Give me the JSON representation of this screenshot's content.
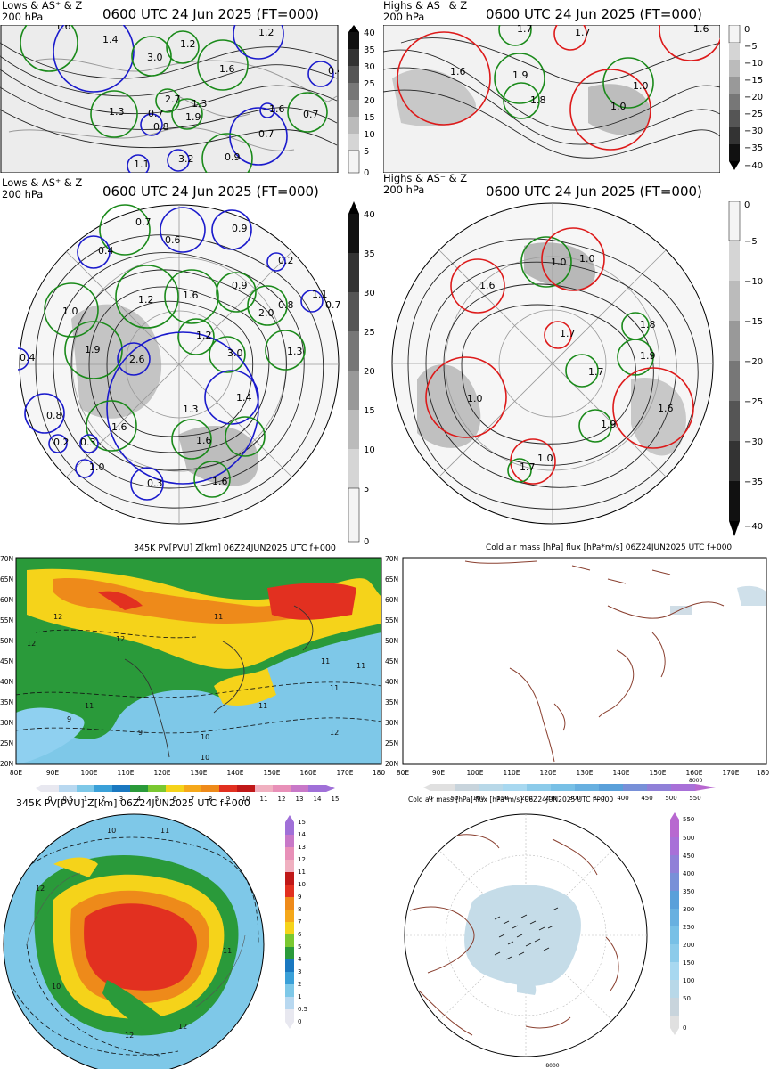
{
  "panel_tl": {
    "header_left_line1": "Lows & AS⁺ & Z",
    "header_left_line2": "200 hPa",
    "header_title": "0600 UTC 24 Jun 2025 (FT=000)",
    "colorbar_ticks": [
      "40",
      "35",
      "30",
      "25",
      "20",
      "15",
      "10",
      "5",
      "0"
    ],
    "labels": [
      "1.6",
      "1.4",
      "1.2",
      "1.2",
      "3.0",
      "1.6",
      "0.4",
      "2.7",
      "1.3",
      "0.7",
      "1.3",
      "1.9",
      "1.6",
      "0.7",
      "0.8",
      "0.7",
      "1.1",
      "3.2",
      "0.9"
    ]
  },
  "panel_tr": {
    "header_left_line1": "Highs & AS⁻ & Z",
    "header_left_line2": "200 hPa",
    "header_title": "0600 UTC 24 Jun 2025 (FT=000)",
    "colorbar_ticks": [
      "0",
      "−5",
      "−10",
      "−15",
      "−20",
      "−25",
      "−30",
      "−35",
      "−40"
    ],
    "labels": [
      "1.7",
      "1.7",
      "1.6",
      "1.6",
      "1.9",
      "1.0",
      "1.8",
      "1.0"
    ]
  },
  "panel_ml": {
    "header_left_line1": "Lows & AS⁺ & Z",
    "header_left_line2": "200 hPa",
    "header_title": "0600 UTC 24 Jun 2025 (FT=000)",
    "colorbar_ticks": [
      "40",
      "35",
      "30",
      "25",
      "20",
      "15",
      "10",
      "5",
      "0"
    ],
    "labels": [
      "0.7",
      "0.9",
      "0.4",
      "0.6",
      "0.2",
      "1.0",
      "1.2",
      "1.6",
      "0.9",
      "0.8",
      "1.9",
      "1.2",
      "3.0",
      "1.3",
      "0.4",
      "2.6",
      "1.3",
      "1.4",
      "0.8",
      "1.6",
      "1.6",
      "0.3",
      "0.2",
      "1.0",
      "0.3",
      "1.6",
      "1.1",
      "0.7",
      "2.0"
    ]
  },
  "panel_mr": {
    "header_left_line1": "Highs & AS⁻ & Z",
    "header_left_line2": "200 hPa",
    "header_title": "0600 UTC 24 Jun 2025 (FT=000)",
    "colorbar_ticks": [
      "0",
      "−5",
      "−10",
      "−15",
      "−20",
      "−25",
      "−30",
      "−35",
      "−40"
    ],
    "labels": [
      "1.0",
      "1.0",
      "1.6",
      "1.7",
      "1.8",
      "1.9",
      "1.7",
      "1.0",
      "1.6",
      "1.9",
      "1.0",
      "1.7"
    ]
  },
  "panel_pv_asia": {
    "title": "345K PV[PVU] Z[km] 06Z24JUN2025 UTC f+000",
    "lat_labels": [
      "70N",
      "65N",
      "60N",
      "55N",
      "50N",
      "45N",
      "40N",
      "35N",
      "30N",
      "25N",
      "20N"
    ],
    "lon_labels": [
      "80E",
      "90E",
      "100E",
      "110E",
      "120E",
      "130E",
      "140E",
      "150E",
      "160E",
      "170E",
      "180"
    ],
    "colorbar_ticks": [
      "0",
      "0.5",
      "1",
      "2",
      "3",
      "4",
      "5",
      "6",
      "7",
      "8",
      "9",
      "10",
      "11",
      "12",
      "13",
      "14",
      "15"
    ],
    "contour_labels": [
      "12",
      "12",
      "11",
      "12",
      "11",
      "10",
      "11",
      "9",
      "11",
      "11",
      "12",
      "10",
      "9",
      "11"
    ]
  },
  "panel_cold_asia": {
    "title": "Cold air mass [hPa] flux [hPa*m/s] 06Z24JUN2025 UTC f+000",
    "lat_labels": [
      "70N",
      "65N",
      "60N",
      "55N",
      "50N",
      "45N",
      "40N",
      "35N",
      "30N",
      "25N",
      "20N"
    ],
    "lon_labels": [
      "80E",
      "90E",
      "100E",
      "110E",
      "120E",
      "130E",
      "140E",
      "150E",
      "160E",
      "170E",
      "180"
    ],
    "colorbar_ticks": [
      "0",
      "50",
      "100",
      "150",
      "200",
      "250",
      "300",
      "350",
      "400",
      "450",
      "500",
      "550"
    ],
    "vector_ref": "8000"
  },
  "panel_pv_polar": {
    "title": "345K PV[PVU] Z[km] 06Z24JUN2025 UTC f+000",
    "colorbar_ticks": [
      "15",
      "14",
      "13",
      "12",
      "11",
      "10",
      "9",
      "8",
      "7",
      "6",
      "5",
      "4",
      "3",
      "2",
      "1",
      "0.5",
      "0"
    ],
    "contour_labels": [
      "10",
      "11",
      "12",
      "11",
      "10",
      "12",
      "12"
    ]
  },
  "panel_cold_polar": {
    "title": "Cold air mass [hPa] flux [hPa*m/s] 06Z24JUN2025 UTC f+000",
    "colorbar_ticks": [
      "550",
      "500",
      "450",
      "400",
      "350",
      "300",
      "250",
      "200",
      "150",
      "100",
      "50",
      "0"
    ],
    "vector_ref": "8000"
  },
  "colors": {
    "low_circle": "#1a1acc",
    "anomaly_circle": "#1a8a1a",
    "high_circle": "#dd1a1a",
    "contour": "#222222",
    "coast": "#8a4030"
  }
}
